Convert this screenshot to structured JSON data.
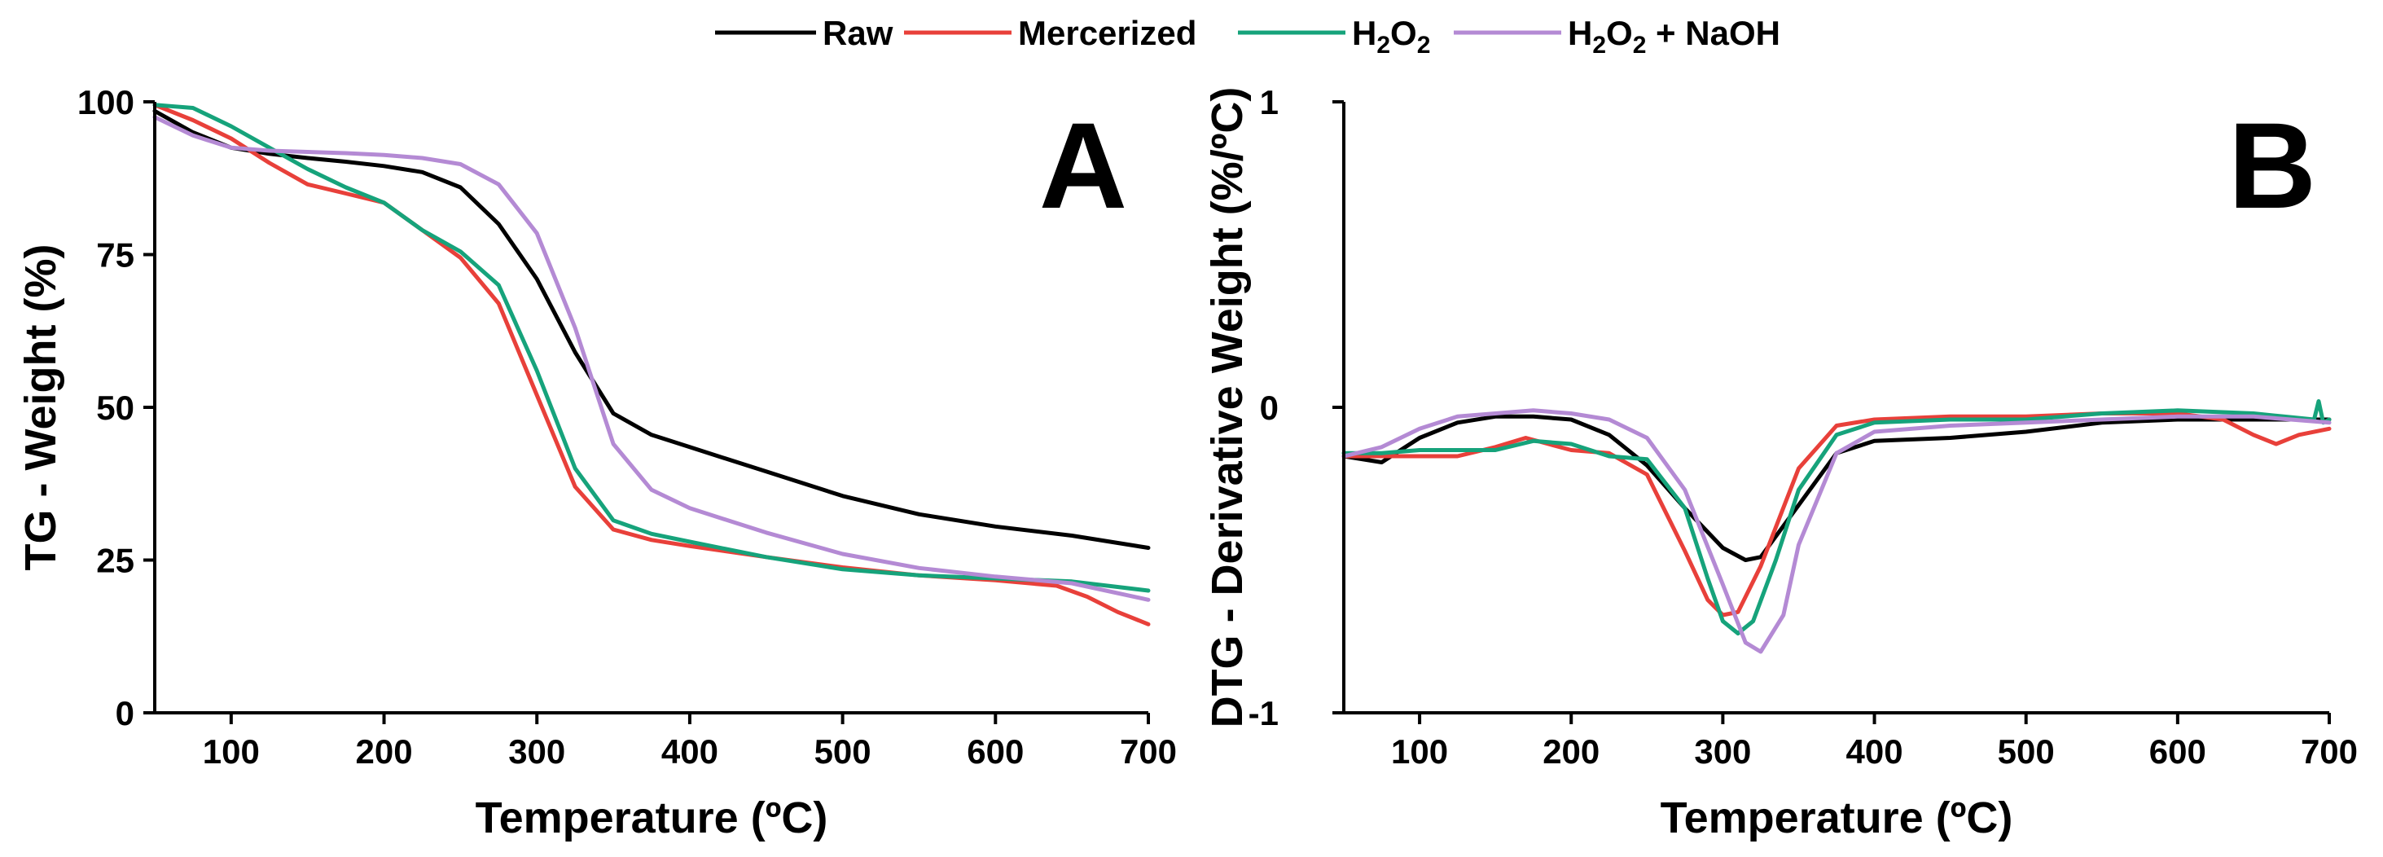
{
  "legend": {
    "entries": [
      {
        "label": "Raw",
        "color": "#000000"
      },
      {
        "label": "Mercerized",
        "color": "#e8403a"
      },
      {
        "label": "H2O2",
        "color": "#16a37b"
      },
      {
        "label": "H2O2 + NaOH",
        "color": "#b48ad4"
      }
    ],
    "placement": "top-center"
  },
  "chart_data": [
    {
      "type": "line",
      "panel_label": "A",
      "title": "",
      "xlabel": "Temperature (ºC)",
      "ylabel": "TG - Weight (%)",
      "xlim": [
        50,
        700
      ],
      "ylim": [
        0,
        100
      ],
      "x_ticks": [
        100,
        200,
        300,
        400,
        500,
        600,
        700
      ],
      "y_ticks": [
        0,
        25,
        50,
        75,
        100
      ],
      "series": [
        {
          "name": "Raw",
          "color": "#000000",
          "x": [
            50,
            75,
            100,
            125,
            150,
            175,
            200,
            225,
            250,
            275,
            300,
            325,
            350,
            375,
            400,
            450,
            500,
            550,
            600,
            650,
            700
          ],
          "y": [
            98.5,
            95,
            92.5,
            91.5,
            90.8,
            90.2,
            89.5,
            88.5,
            86,
            80,
            71,
            59,
            49,
            45.5,
            43.5,
            39.5,
            35.5,
            32.5,
            30.5,
            29,
            27
          ]
        },
        {
          "name": "Mercerized",
          "color": "#e8403a",
          "x": [
            50,
            75,
            100,
            125,
            150,
            175,
            200,
            225,
            250,
            275,
            300,
            325,
            350,
            375,
            400,
            450,
            500,
            550,
            600,
            640,
            660,
            680,
            700
          ],
          "y": [
            99.5,
            97,
            94,
            90,
            86.5,
            85,
            83.5,
            79,
            74.5,
            67,
            52,
            37,
            30,
            28.3,
            27.3,
            25.5,
            23.8,
            22.5,
            21.7,
            20.8,
            19,
            16.5,
            14.5
          ]
        },
        {
          "name": "H2O2",
          "color": "#16a37b",
          "x": [
            50,
            75,
            100,
            125,
            150,
            175,
            200,
            225,
            250,
            275,
            300,
            325,
            350,
            375,
            400,
            450,
            500,
            550,
            600,
            650,
            700
          ],
          "y": [
            99.5,
            99,
            96,
            92.5,
            89,
            86,
            83.5,
            79,
            75.5,
            70,
            56,
            40,
            31.5,
            29.3,
            28,
            25.5,
            23.5,
            22.5,
            22,
            21.5,
            20
          ]
        },
        {
          "name": "H2O2 + NaOH",
          "color": "#b48ad4",
          "x": [
            50,
            75,
            100,
            125,
            150,
            175,
            200,
            225,
            250,
            275,
            300,
            325,
            350,
            375,
            400,
            450,
            500,
            550,
            600,
            650,
            700
          ],
          "y": [
            97.5,
            94.5,
            92.5,
            92,
            91.8,
            91.6,
            91.3,
            90.8,
            89.8,
            86.5,
            78.5,
            63,
            44,
            36.5,
            33.5,
            29.5,
            26,
            23.7,
            22.3,
            21.2,
            18.5
          ]
        }
      ]
    },
    {
      "type": "line",
      "panel_label": "B",
      "title": "",
      "xlabel": "Temperature (ºC)",
      "ylabel": "DTG - Derivative Weight (%/ºC)",
      "xlim": [
        50,
        700
      ],
      "ylim": [
        -1,
        1
      ],
      "x_ticks": [
        100,
        200,
        300,
        400,
        500,
        600,
        700
      ],
      "y_ticks": [
        -1,
        0,
        1
      ],
      "series": [
        {
          "name": "Raw",
          "color": "#000000",
          "x": [
            50,
            75,
            100,
            125,
            150,
            175,
            200,
            225,
            250,
            275,
            300,
            315,
            325,
            350,
            375,
            400,
            450,
            500,
            550,
            600,
            650,
            700
          ],
          "y": [
            -0.16,
            -0.18,
            -0.1,
            -0.05,
            -0.03,
            -0.03,
            -0.04,
            -0.09,
            -0.19,
            -0.33,
            -0.46,
            -0.5,
            -0.49,
            -0.32,
            -0.15,
            -0.11,
            -0.1,
            -0.08,
            -0.05,
            -0.04,
            -0.04,
            -0.04
          ]
        },
        {
          "name": "Mercerized",
          "color": "#e8403a",
          "x": [
            50,
            75,
            100,
            125,
            150,
            170,
            185,
            200,
            225,
            250,
            275,
            290,
            300,
            310,
            325,
            350,
            375,
            400,
            450,
            500,
            550,
            600,
            630,
            650,
            665,
            680,
            700
          ],
          "y": [
            -0.16,
            -0.16,
            -0.16,
            -0.16,
            -0.13,
            -0.1,
            -0.12,
            -0.14,
            -0.15,
            -0.22,
            -0.47,
            -0.63,
            -0.68,
            -0.67,
            -0.52,
            -0.2,
            -0.06,
            -0.04,
            -0.03,
            -0.03,
            -0.02,
            -0.02,
            -0.04,
            -0.09,
            -0.12,
            -0.09,
            -0.07
          ]
        },
        {
          "name": "H2O2",
          "color": "#16a37b",
          "x": [
            50,
            75,
            100,
            125,
            150,
            175,
            200,
            225,
            250,
            275,
            290,
            300,
            310,
            320,
            335,
            350,
            375,
            400,
            450,
            500,
            550,
            600,
            650,
            690,
            693,
            696,
            700
          ],
          "y": [
            -0.15,
            -0.15,
            -0.14,
            -0.14,
            -0.14,
            -0.11,
            -0.12,
            -0.16,
            -0.17,
            -0.33,
            -0.56,
            -0.7,
            -0.74,
            -0.7,
            -0.5,
            -0.27,
            -0.09,
            -0.05,
            -0.04,
            -0.04,
            -0.02,
            -0.01,
            -0.02,
            -0.04,
            0.02,
            -0.05,
            -0.04
          ]
        },
        {
          "name": "H2O2 + NaOH",
          "color": "#b48ad4",
          "x": [
            50,
            75,
            100,
            125,
            150,
            175,
            200,
            225,
            250,
            275,
            300,
            315,
            325,
            340,
            350,
            375,
            400,
            450,
            500,
            550,
            600,
            650,
            700
          ],
          "y": [
            -0.16,
            -0.13,
            -0.07,
            -0.03,
            -0.02,
            -0.01,
            -0.02,
            -0.04,
            -0.1,
            -0.27,
            -0.58,
            -0.77,
            -0.8,
            -0.68,
            -0.45,
            -0.15,
            -0.08,
            -0.06,
            -0.05,
            -0.04,
            -0.03,
            -0.03,
            -0.05
          ]
        }
      ]
    }
  ]
}
